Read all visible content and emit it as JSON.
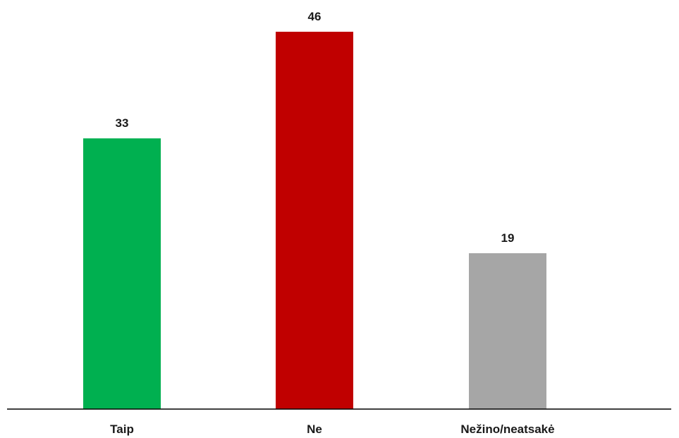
{
  "chart_data": {
    "type": "bar",
    "categories": [
      "Taip",
      "Ne",
      "Nežino/neatsakė"
    ],
    "values": [
      33,
      46,
      19
    ],
    "data_labels": [
      "33",
      "46",
      "19"
    ],
    "colors": [
      "#00b050",
      "#c00000",
      "#a6a6a6"
    ],
    "title": "",
    "xlabel": "",
    "ylabel": "",
    "ylim": [
      0,
      46
    ],
    "grid": false,
    "legend": "none"
  }
}
